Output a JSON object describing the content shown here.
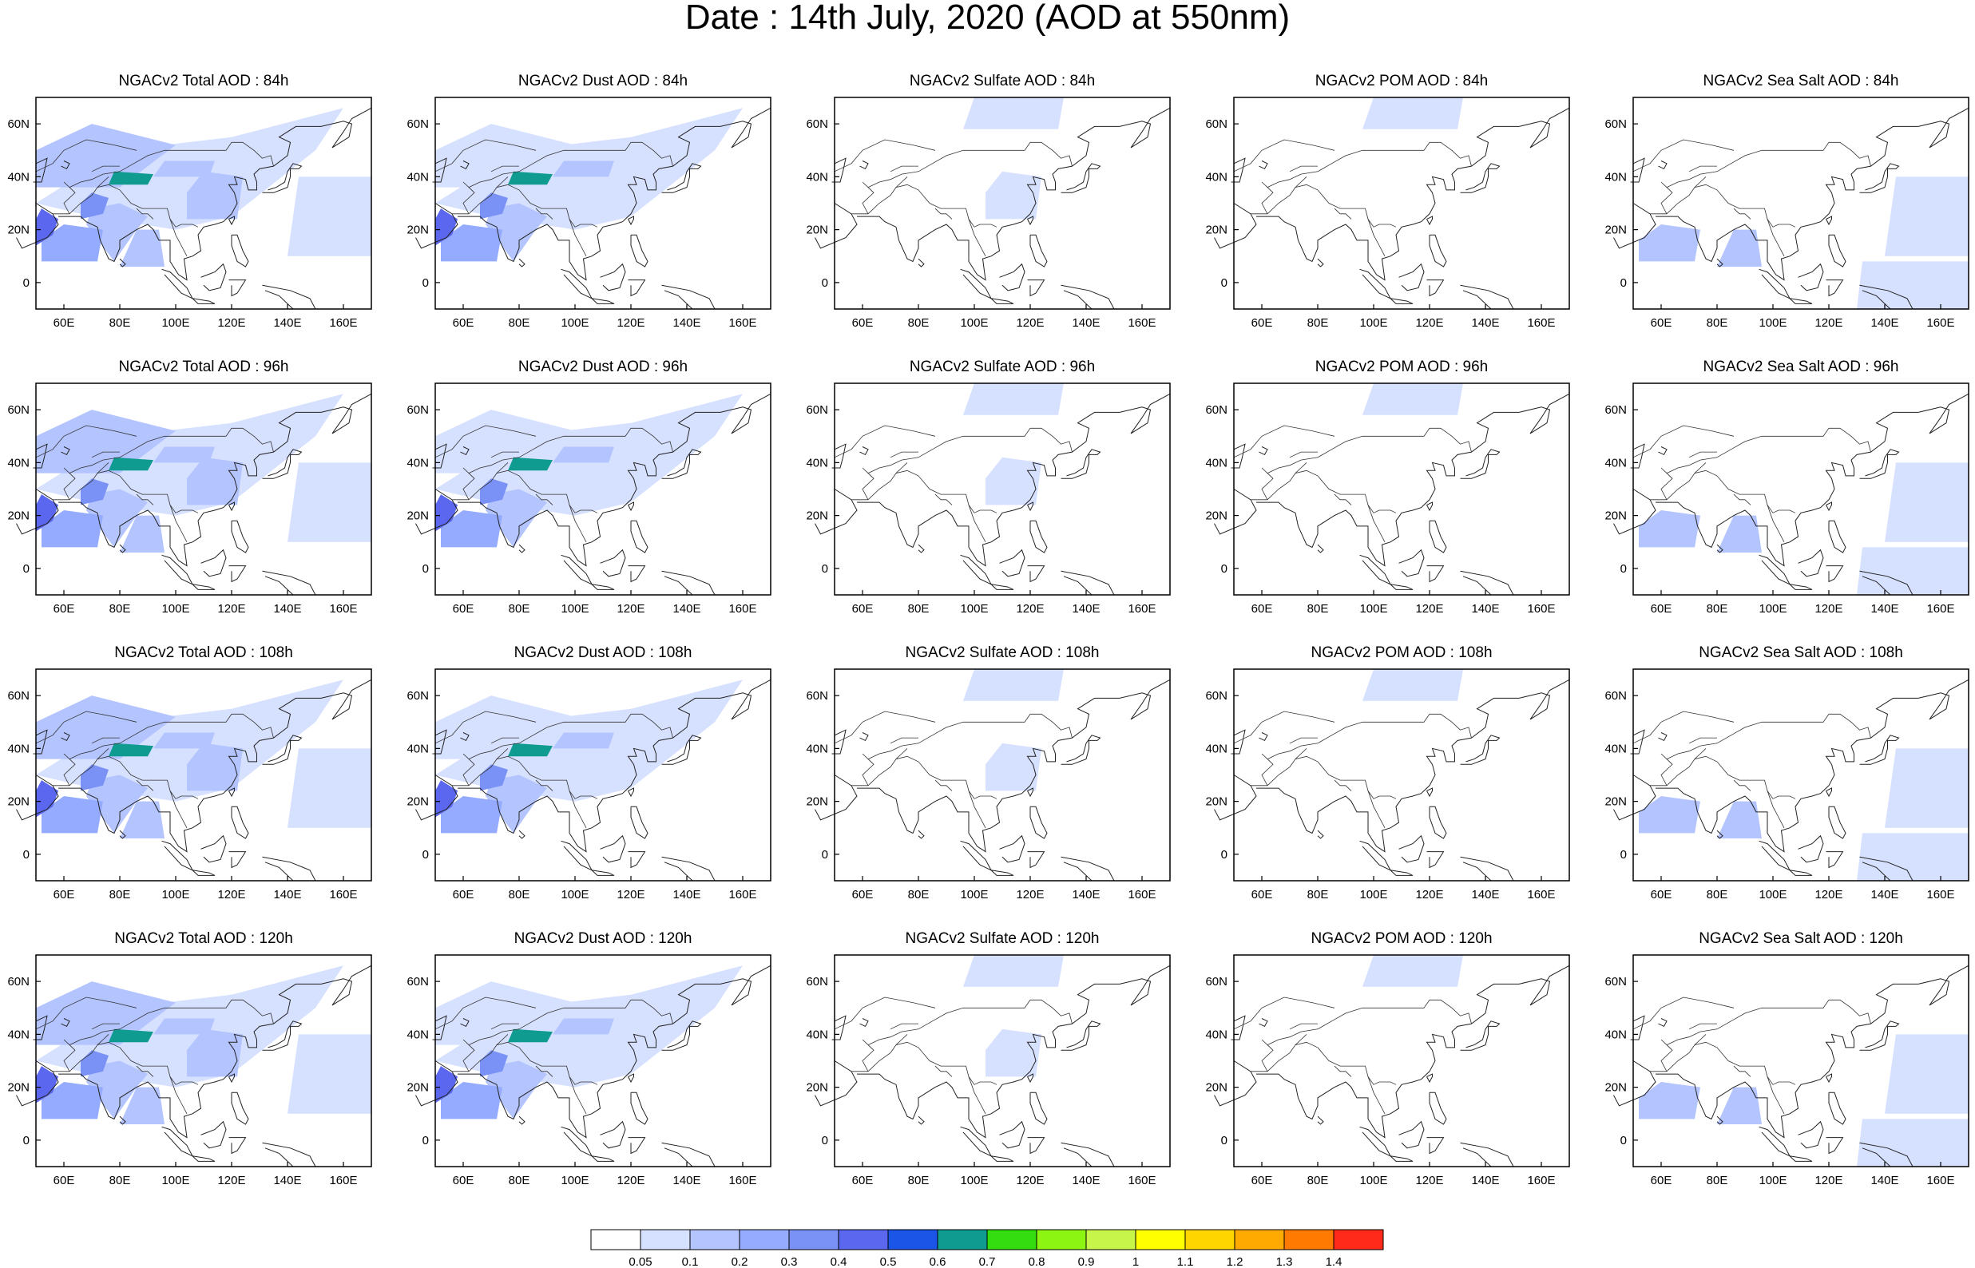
{
  "title": "Date : 14th July, 2020 (AOD at 550nm)",
  "map": {
    "lon_ticks": [
      "60E",
      "80E",
      "100E",
      "120E",
      "140E",
      "160E"
    ],
    "lat_ticks": [
      "60N",
      "40N",
      "20N",
      "0"
    ],
    "lon_values": [
      60,
      80,
      100,
      120,
      140,
      160
    ],
    "lat_values": [
      60,
      40,
      20,
      0
    ],
    "lon_range": [
      50,
      170
    ],
    "lat_range": [
      -10,
      70
    ]
  },
  "panels": [
    {
      "title": "NGACv2 Total AOD : 84h",
      "species": "total",
      "forecast_hour": 84
    },
    {
      "title": "NGACv2 Dust AOD : 84h",
      "species": "dust",
      "forecast_hour": 84
    },
    {
      "title": "NGACv2 Sulfate AOD : 84h",
      "species": "sulfate",
      "forecast_hour": 84
    },
    {
      "title": "NGACv2 POM AOD : 84h",
      "species": "pom",
      "forecast_hour": 84
    },
    {
      "title": "NGACv2 Sea Salt AOD : 84h",
      "species": "seasalt",
      "forecast_hour": 84
    },
    {
      "title": "NGACv2 Total AOD : 96h",
      "species": "total",
      "forecast_hour": 96
    },
    {
      "title": "NGACv2 Dust AOD : 96h",
      "species": "dust",
      "forecast_hour": 96
    },
    {
      "title": "NGACv2 Sulfate AOD : 96h",
      "species": "sulfate",
      "forecast_hour": 96
    },
    {
      "title": "NGACv2 POM AOD : 96h",
      "species": "pom",
      "forecast_hour": 96
    },
    {
      "title": "NGACv2 Sea Salt AOD : 96h",
      "species": "seasalt",
      "forecast_hour": 96
    },
    {
      "title": "NGACv2 Total AOD : 108h",
      "species": "total",
      "forecast_hour": 108
    },
    {
      "title": "NGACv2 Dust AOD : 108h",
      "species": "dust",
      "forecast_hour": 108
    },
    {
      "title": "NGACv2 Sulfate AOD : 108h",
      "species": "sulfate",
      "forecast_hour": 108
    },
    {
      "title": "NGACv2 POM AOD : 108h",
      "species": "pom",
      "forecast_hour": 108
    },
    {
      "title": "NGACv2 Sea Salt AOD : 108h",
      "species": "seasalt",
      "forecast_hour": 108
    },
    {
      "title": "NGACv2 Total AOD : 120h",
      "species": "total",
      "forecast_hour": 120
    },
    {
      "title": "NGACv2 Dust AOD : 120h",
      "species": "dust",
      "forecast_hour": 120
    },
    {
      "title": "NGACv2 Sulfate AOD : 120h",
      "species": "sulfate",
      "forecast_hour": 120
    },
    {
      "title": "NGACv2 POM AOD : 120h",
      "species": "pom",
      "forecast_hour": 120
    },
    {
      "title": "NGACv2 Sea Salt  AOD : 120h",
      "species": "seasalt",
      "forecast_hour": 120
    }
  ],
  "colorbar": {
    "labels": [
      "0.05",
      "0.1",
      "0.2",
      "0.3",
      "0.4",
      "0.5",
      "0.6",
      "0.7",
      "0.8",
      "0.9",
      "1",
      "1.1",
      "1.2",
      "1.3",
      "1.4"
    ],
    "colors": [
      "#ffffff",
      "#d6e0ff",
      "#b3c4ff",
      "#94abff",
      "#7a92f5",
      "#5a67ee",
      "#1a55e8",
      "#0f9b8f",
      "#33dd10",
      "#8cf511",
      "#c8f54a",
      "#ffff00",
      "#ffd500",
      "#ffaa00",
      "#ff7a00",
      "#ff2a1a"
    ]
  },
  "shading_levels": {
    "total": {
      "dust_sources": 4,
      "india": 3,
      "ocean": 1,
      "land": 2
    },
    "dust": {
      "dust_sources": 4,
      "india": 3,
      "ocean": 0,
      "land": 2
    },
    "sulfate": {
      "china": 2,
      "ocean": 0,
      "land": 0
    },
    "pom": {
      "siberia": 2,
      "ocean": 0,
      "land": 0
    },
    "seasalt": {
      "indian_ocean": 2,
      "pacific": 1,
      "land": 0
    }
  }
}
